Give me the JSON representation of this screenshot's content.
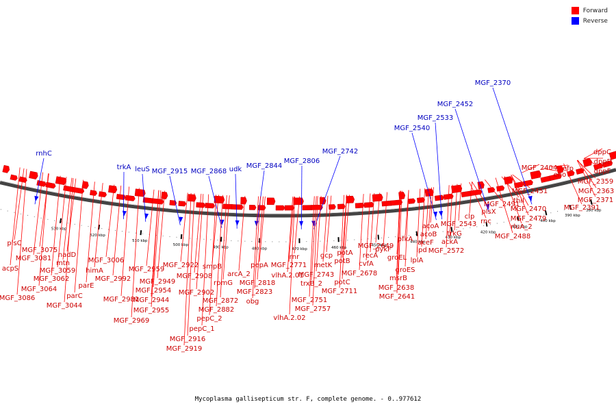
{
  "title": "Mycoplasma gallisepticum str. F, complete genome. - 0..977612",
  "legend": [
    {
      "label": "Forward",
      "color": "#ff0000"
    },
    {
      "label": "Reverse",
      "color": "#0000ff"
    }
  ],
  "colors": {
    "forward": "#ff0000",
    "reverse": "#0000ff",
    "backbone": "#555555"
  },
  "scale_ticks": [
    "380 kbp",
    "390 kbp",
    "400 kbp",
    "410 kbp",
    "420 kbp",
    "430 kbp",
    "440 kbp",
    "450 kbp",
    "460 kbp",
    "470 kbp",
    "480 kbp",
    "490 kbp",
    "500 kbp",
    "510 kbp",
    "520 kbp",
    "530 kbp"
  ],
  "reverse_genes": [
    "rnhC",
    "trkA",
    "leuS",
    "MGF_2915",
    "MGF_2868",
    "udk",
    "MGF_2844",
    "MGF_2806",
    "MGF_2742",
    "MGF_2540",
    "MGF_2533",
    "MGF_2452",
    "MGF_2370"
  ],
  "forward_genes": [
    "plsC",
    "acpS",
    "MGF_3075",
    "MGF_3081",
    "MGF_3086",
    "MGF_3059",
    "MGF_3062",
    "MGF_3064",
    "nadD",
    "mtn",
    "parE",
    "parC",
    "MGF_3044",
    "MGF_3006",
    "himA",
    "MGF_2992",
    "MGF_2981",
    "MGF_2969",
    "MGF_2959",
    "MGF_2949",
    "MGF_2954",
    "MGF_2944",
    "MGF_2955",
    "MGF_2922",
    "MGF_2908",
    "MGF_2902",
    "pepC_2",
    "pepC_1",
    "MGF_2916",
    "MGF_2919",
    "smpB",
    "rpmG",
    "MGF_2872",
    "MGF_2882",
    "arcA_2",
    "pepA",
    "MGF_2818",
    "MGF_2823",
    "obg",
    "vlhA.2.01",
    "vlhA.2.02",
    "MGF_2771",
    "rnr",
    "trxB_2",
    "MGF_2751",
    "MGF_2757",
    "gcp",
    "metK",
    "MGF_2743",
    "potA",
    "potB",
    "potC",
    "MGF_2711",
    "cvfA",
    "recA",
    "MGF_2678",
    "MGF_2649",
    "pykF",
    "groEL",
    "groES",
    "msrB",
    "MGF_2638",
    "MGF_2641",
    "pfkA",
    "lpd",
    "lplA",
    "aceF",
    "acoB",
    "acoA",
    "ackA",
    "MGF_2572",
    "trkG",
    "MGF_2543",
    "clp",
    "plsX",
    "rnc",
    "MGF_2491",
    "thiI",
    "MGF_2470",
    "MGF_2479",
    "rluA_2",
    "MGF_2488",
    "MGF_2451",
    "MGF_2404",
    "eno",
    "efp",
    "MGF_2359",
    "MGF_2363",
    "MGF_2371",
    "MGF_2391",
    "dppC",
    "dppD",
    "dppF"
  ]
}
